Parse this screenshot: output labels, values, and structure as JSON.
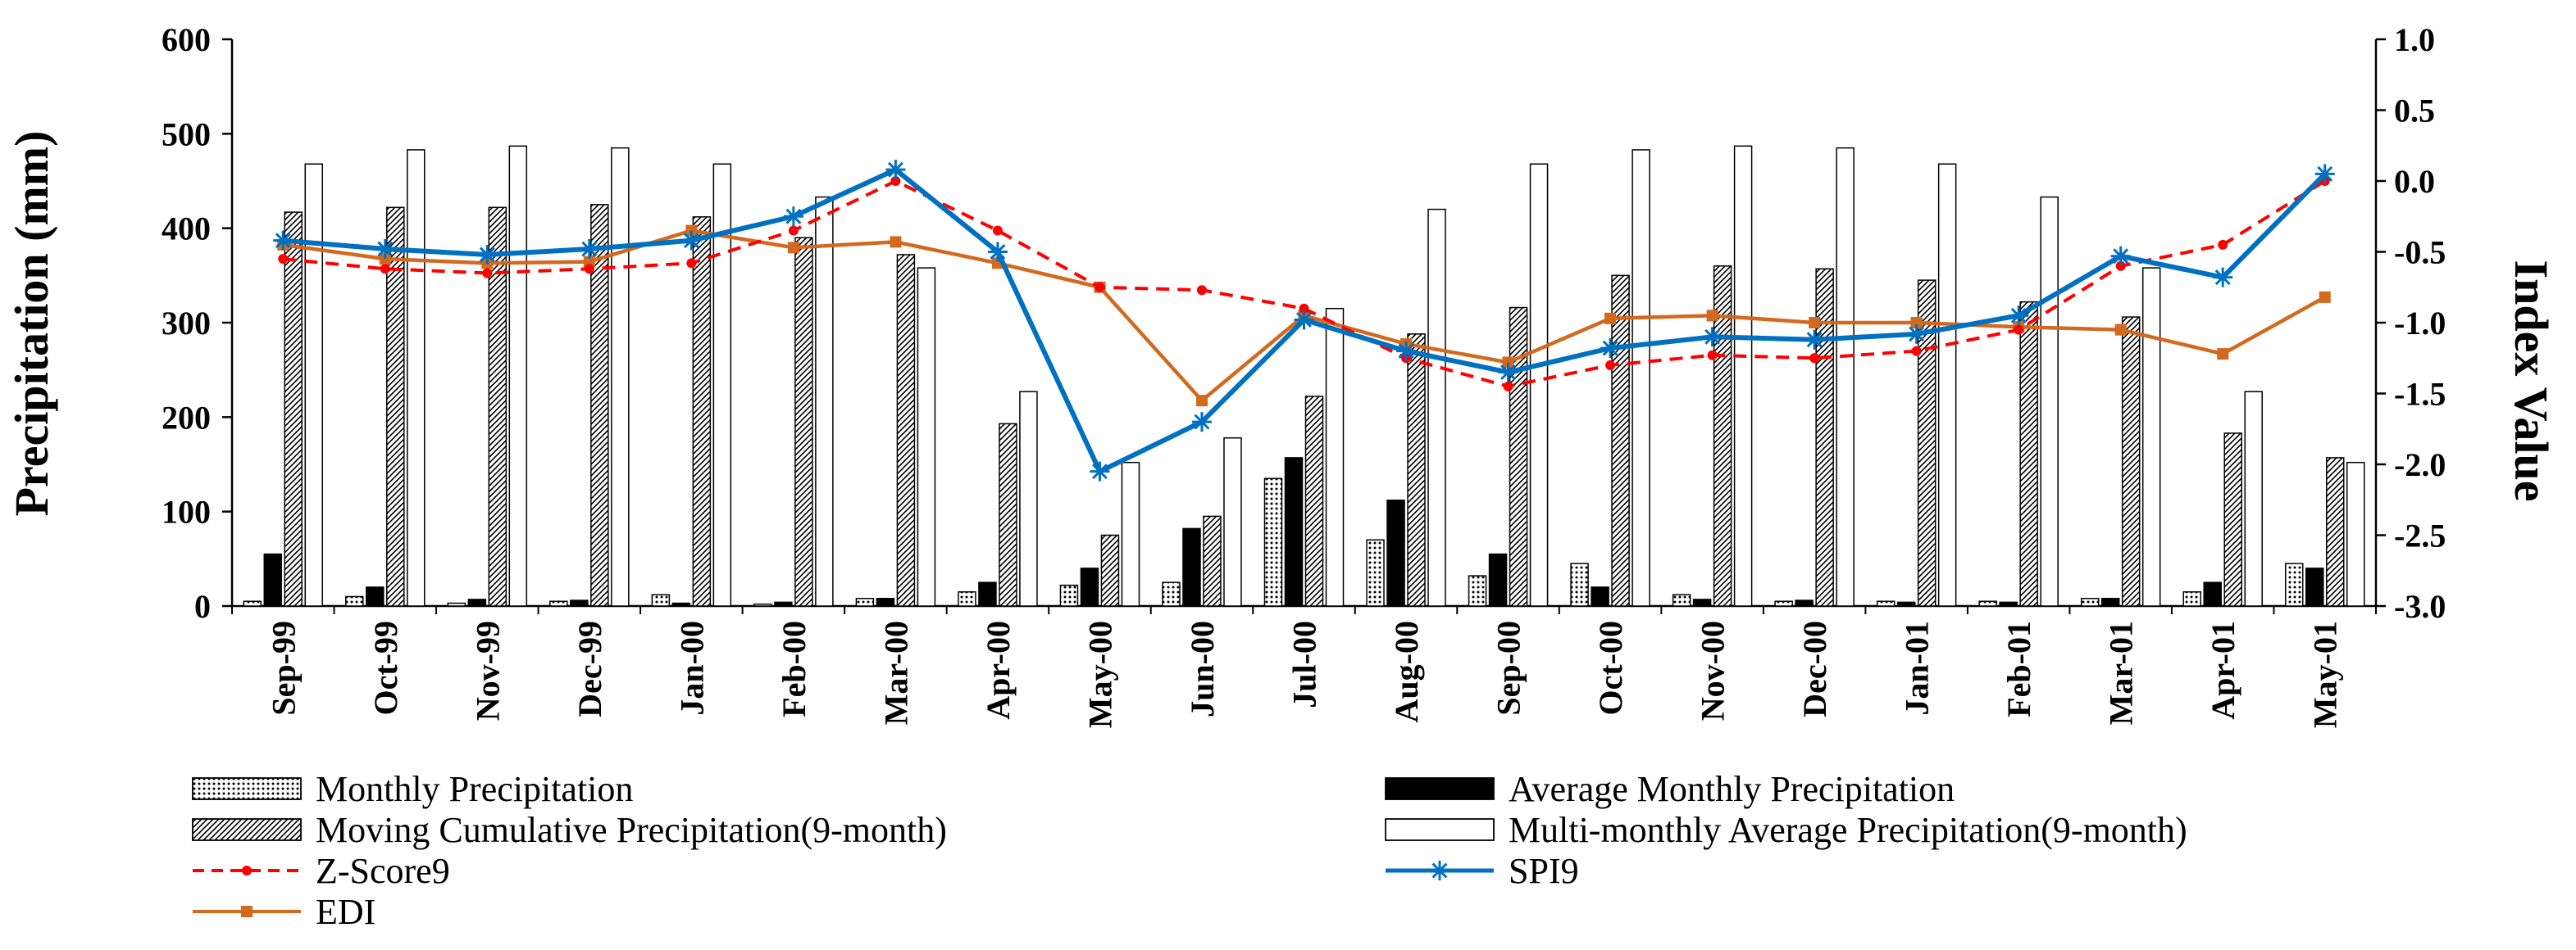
{
  "chart_data": {
    "type": "bar+line",
    "title": "",
    "categories": [
      "Sep-99",
      "Oct-99",
      "Nov-99",
      "Dec-99",
      "Jan-00",
      "Feb-00",
      "Mar-00",
      "Apr-00",
      "May-00",
      "Jun-00",
      "Jul-00",
      "Aug-00",
      "Sep-00",
      "Oct-00",
      "Nov-00",
      "Dec-00",
      "Jan-01",
      "Feb-01",
      "Mar-01",
      "Apr-01",
      "May-01"
    ],
    "ylabel": "Precipitation (mm)",
    "y2label": "Index Value",
    "ylim": [
      0,
      600
    ],
    "yticks": [
      "0",
      "100",
      "200",
      "300",
      "400",
      "500",
      "600"
    ],
    "y2lim": [
      -3.0,
      1.0
    ],
    "y2ticks": [
      "-3.0",
      "-2.5",
      "-2.0",
      "-1.5",
      "-1.0",
      "-0.5",
      "0.0",
      "0.5",
      "1.0"
    ],
    "grid": false,
    "bar_series": [
      {
        "name": "Monthly Precipitation",
        "pattern": "dots",
        "values": [
          5,
          10,
          3,
          5,
          12,
          2,
          8,
          15,
          22,
          25,
          135,
          70,
          32,
          45,
          12,
          5,
          5,
          5,
          8,
          15,
          45
        ]
      },
      {
        "name": "Average Monthly Precipitation",
        "pattern": "solid",
        "values": [
          55,
          20,
          7,
          6,
          3,
          4,
          8,
          25,
          40,
          82,
          157,
          112,
          55,
          20,
          7,
          6,
          4,
          4,
          8,
          25,
          40
        ]
      },
      {
        "name": "Moving Cumulative Precipitation(9-month)",
        "pattern": "hatch",
        "values": [
          417,
          422,
          422,
          425,
          412,
          390,
          372,
          193,
          75,
          95,
          222,
          288,
          316,
          350,
          360,
          357,
          345,
          322,
          306,
          183,
          157
        ]
      },
      {
        "name": "Multi-monthly Average Precipitation(9-month)",
        "pattern": "empty",
        "values": [
          468,
          483,
          487,
          485,
          468,
          433,
          358,
          227,
          152,
          178,
          315,
          420,
          468,
          483,
          487,
          485,
          468,
          433,
          358,
          227,
          152
        ]
      }
    ],
    "line_series": [
      {
        "name": "Z-Score9",
        "color": "#ff0000",
        "style": "dashed",
        "marker": "dot",
        "values": [
          -0.55,
          -0.62,
          -0.65,
          -0.62,
          -0.58,
          -0.35,
          0.0,
          -0.35,
          -0.75,
          -0.77,
          -0.9,
          -1.25,
          -1.45,
          -1.3,
          -1.23,
          -1.25,
          -1.2,
          -1.05,
          -0.6,
          -0.45,
          0.0
        ]
      },
      {
        "name": "SPI9",
        "color": "#0070c0",
        "style": "solid",
        "marker": "star",
        "values": [
          -0.42,
          -0.48,
          -0.52,
          -0.48,
          -0.42,
          -0.25,
          0.08,
          -0.5,
          -2.05,
          -1.7,
          -0.98,
          -1.2,
          -1.35,
          -1.18,
          -1.1,
          -1.12,
          -1.08,
          -0.95,
          -0.53,
          -0.68,
          0.05
        ]
      },
      {
        "name": "EDI",
        "color": "#d2691e",
        "style": "solid",
        "marker": "square",
        "values": [
          -0.45,
          -0.55,
          -0.58,
          -0.57,
          -0.35,
          -0.47,
          -0.43,
          -0.58,
          -0.75,
          -1.55,
          -0.95,
          -1.15,
          -1.28,
          -0.97,
          -0.95,
          -1.0,
          -1.0,
          -1.03,
          -1.05,
          -1.22,
          -0.82
        ]
      }
    ],
    "legend": {
      "placement": "bottom",
      "entries": [
        "Monthly Precipitation",
        "Average Monthly Precipitation",
        "Moving Cumulative Precipitation(9-month)",
        "Multi-monthly Average Precipitation(9-month)",
        "Z-Score9",
        "SPI9",
        "EDI"
      ]
    }
  }
}
